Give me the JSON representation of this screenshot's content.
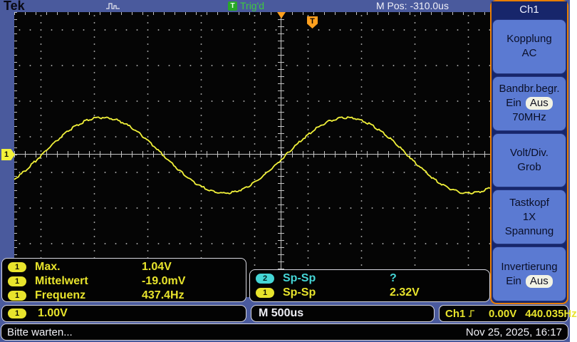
{
  "brand": "Tek",
  "topbar": {
    "trig_badge": "T",
    "trig_status": "Trig'd",
    "m_pos": "M Pos: -310.0us"
  },
  "trigger": {
    "marker_label": "T",
    "source": "Ch1",
    "level": "0.00V",
    "frequency": "440.035Hz"
  },
  "channel_marker": "1",
  "measure_box1": {
    "rows": [
      {
        "ch": "1",
        "name": "Max.",
        "value": "1.04V"
      },
      {
        "ch": "1",
        "name": "Mittelwert",
        "value": "-19.0mV"
      },
      {
        "ch": "1",
        "name": "Frequenz",
        "value": "437.4Hz"
      }
    ]
  },
  "measure_box2": {
    "rows": [
      {
        "ch": "2",
        "name": "Sp-Sp",
        "value": "?"
      },
      {
        "ch": "1",
        "name": "Sp-Sp",
        "value": "2.32V"
      }
    ]
  },
  "scale_row": {
    "ch_badge": "1",
    "ch1_scale": "1.00V",
    "time_scale": "M 500us"
  },
  "statusbar": {
    "message": "Bitte warten...",
    "datetime": "Nov 25, 2025, 16:17"
  },
  "menu": {
    "title": "Ch1",
    "kopplung": {
      "label": "Kopplung",
      "value": "AC"
    },
    "bandbreite": {
      "label": "Bandbr.begr.",
      "ein": "Ein",
      "aus": "Aus",
      "value": "70MHz"
    },
    "voltdiv": {
      "label": "Volt/Div.",
      "value": "Grob"
    },
    "tastkopf": {
      "label": "Tastkopf",
      "value1": "1X",
      "value2": "Spannung"
    },
    "invertierung": {
      "label": "Invertierung",
      "ein": "Ein",
      "aus": "Aus"
    }
  },
  "waveform": {
    "max_v": 1.04,
    "mean_v": -0.019,
    "pkpk_v": 2.32,
    "freq_hz": 437.4,
    "volts_per_div": 1.0,
    "time_per_div_us": 500
  },
  "colors": {
    "channel1": "#f2f23a",
    "channel2": "#45d6d6",
    "trigger_orange": "#ffa01e",
    "trig_green": "#3fc93f",
    "bezel_blue": "#4a5a9d"
  }
}
